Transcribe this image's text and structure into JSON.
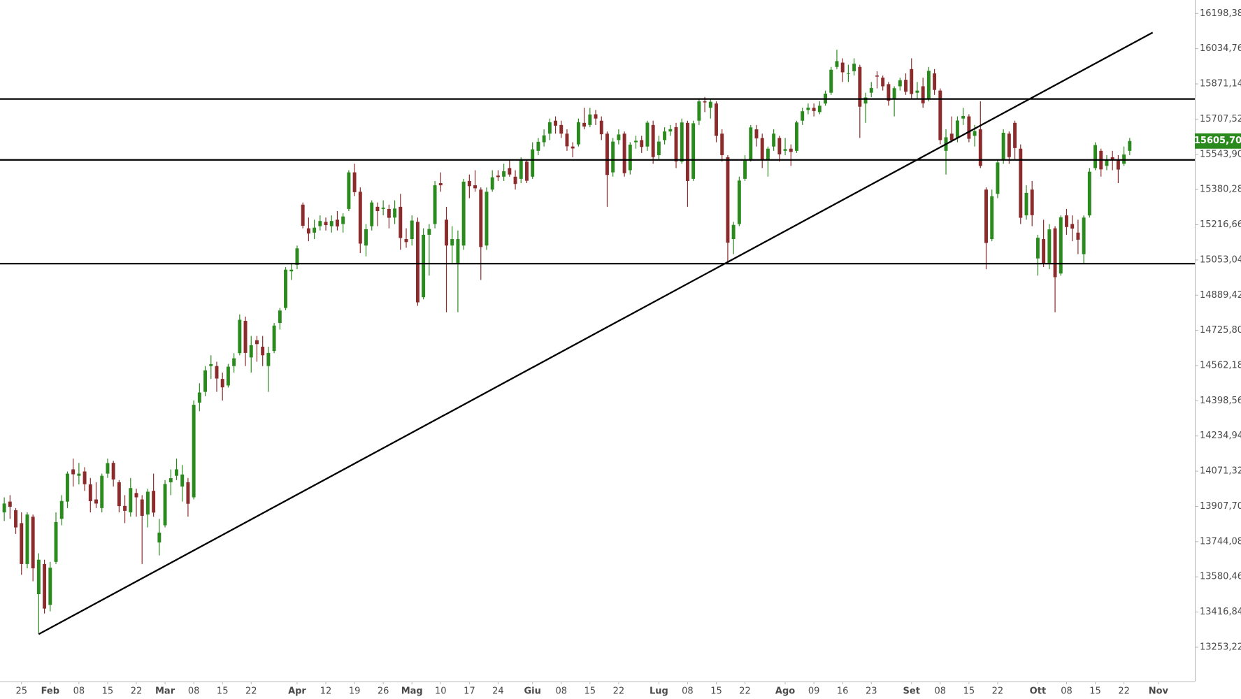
{
  "chart_data": {
    "type": "candlestick",
    "up_color": "#2b8a1e",
    "down_color": "#8b2b2b",
    "line_color": "#000000",
    "grid": false,
    "ylim": [
      13094,
      16261
    ],
    "yticks": [
      {
        "value": 16198.38,
        "label": "16198,38"
      },
      {
        "value": 16034.76,
        "label": "16034,76"
      },
      {
        "value": 15871.14,
        "label": "15871,14"
      },
      {
        "value": 15707.52,
        "label": "15707,52"
      },
      {
        "value": 15543.9,
        "label": "15543,90"
      },
      {
        "value": 15380.28,
        "label": "15380,28"
      },
      {
        "value": 15216.66,
        "label": "15216,66"
      },
      {
        "value": 15053.04,
        "label": "15053,04"
      },
      {
        "value": 14889.42,
        "label": "14889,42"
      },
      {
        "value": 14725.8,
        "label": "14725,80"
      },
      {
        "value": 14562.18,
        "label": "14562,18"
      },
      {
        "value": 14398.56,
        "label": "14398,56"
      },
      {
        "value": 14234.94,
        "label": "14234,94"
      },
      {
        "value": 14071.32,
        "label": "14071,32"
      },
      {
        "value": 13907.7,
        "label": "13907,70"
      },
      {
        "value": 13744.08,
        "label": "13744,08"
      },
      {
        "value": 13580.46,
        "label": "13580,46"
      },
      {
        "value": 13416.84,
        "label": "13416,84"
      },
      {
        "value": 13253.22,
        "label": "13253,22"
      }
    ],
    "last_price": {
      "value": 15605.7,
      "label": "15605,70"
    },
    "hlines": [
      15801,
      15518,
      15036
    ],
    "trendline": {
      "x": [
        6,
        200
      ],
      "y": [
        13314,
        16110
      ]
    },
    "categories": [
      null,
      null,
      null,
      "25",
      null,
      null,
      null,
      null,
      "Feb",
      null,
      null,
      null,
      null,
      "08",
      null,
      null,
      null,
      null,
      "15",
      null,
      null,
      null,
      null,
      "22",
      null,
      null,
      null,
      null,
      "Mar",
      null,
      null,
      null,
      null,
      "08",
      null,
      null,
      null,
      null,
      "15",
      null,
      null,
      null,
      null,
      "22",
      null,
      null,
      null,
      null,
      null,
      null,
      null,
      "Apr",
      null,
      null,
      null,
      null,
      "12",
      null,
      null,
      null,
      null,
      "19",
      null,
      null,
      null,
      null,
      "26",
      null,
      null,
      null,
      null,
      "Mag",
      null,
      null,
      null,
      null,
      "10",
      null,
      null,
      null,
      null,
      "17",
      null,
      null,
      null,
      null,
      "24",
      null,
      null,
      null,
      null,
      null,
      "Giu",
      null,
      null,
      null,
      null,
      "08",
      null,
      null,
      null,
      null,
      "15",
      null,
      null,
      null,
      null,
      "22",
      null,
      null,
      null,
      null,
      null,
      null,
      "Lug",
      null,
      null,
      null,
      null,
      "08",
      null,
      null,
      null,
      null,
      "15",
      null,
      null,
      null,
      null,
      "22",
      null,
      null,
      null,
      null,
      null,
      null,
      "Ago",
      null,
      null,
      null,
      null,
      "09",
      null,
      null,
      null,
      null,
      "16",
      null,
      null,
      null,
      null,
      "23",
      null,
      null,
      null,
      null,
      null,
      null,
      "Set",
      null,
      null,
      null,
      null,
      "08",
      null,
      null,
      null,
      null,
      "15",
      null,
      null,
      null,
      null,
      "22",
      null,
      null,
      null,
      null,
      null,
      null,
      "Ott",
      null,
      null,
      null,
      null,
      "08",
      null,
      null,
      null,
      null,
      "15",
      null,
      null,
      null,
      null,
      "22",
      null,
      null,
      null,
      null,
      null,
      "Nov"
    ],
    "open": [
      13880,
      13930,
      13890,
      13830,
      13640,
      13860,
      13500,
      13640,
      13450,
      13650,
      13850,
      13930,
      14080,
      14050,
      14070,
      14010,
      13940,
      13900,
      14060,
      14110,
      14020,
      13910,
      13880,
      13970,
      13940,
      13870,
      13980,
      13740,
      13820,
      14020,
      14050,
      14000,
      14020,
      13950,
      14390,
      14440,
      14560,
      14560,
      14500,
      14470,
      14560,
      14620,
      14770,
      14600,
      14680,
      14650,
      14560,
      14630,
      14760,
      14830,
      15000,
      15030,
      15310,
      15200,
      15180,
      15210,
      15230,
      15210,
      15240,
      15220,
      15290,
      15460,
      15370,
      15120,
      15210,
      15300,
      15290,
      15290,
      15250,
      15300,
      15150,
      15150,
      15230,
      14880,
      15170,
      15220,
      15410,
      15240,
      15120,
      15040,
      15120,
      15420,
      15400,
      15380,
      15120,
      15380,
      15445,
      15440,
      15480,
      15440,
      15430,
      15510,
      15440,
      15560,
      15600,
      15640,
      15700,
      15680,
      15640,
      15580,
      15590,
      15690,
      15680,
      15730,
      15700,
      15640,
      15460,
      15610,
      15640,
      15470,
      15600,
      15610,
      15580,
      15680,
      15540,
      15610,
      15650,
      15670,
      15510,
      15690,
      15430,
      15700,
      15790,
      15760,
      15780,
      15640,
      15530,
      15150,
      15220,
      15430,
      15520,
      15660,
      15620,
      15520,
      15580,
      15620,
      15560,
      15570,
      15560,
      15700,
      15750,
      15760,
      15740,
      15780,
      15830,
      15950,
      15970,
      15920,
      15930,
      15950,
      15780,
      15830,
      15910,
      15900,
      15870,
      15800,
      15860,
      15890,
      15940,
      15830,
      15860,
      15800,
      15920,
      15840,
      15560,
      15640,
      15620,
      15710,
      15720,
      15630,
      15660,
      15380,
      15150,
      15360,
      15520,
      15640,
      15690,
      15570,
      15260,
      15380,
      15060,
      15150,
      15040,
      15200,
      14990,
      15260,
      15220,
      15180,
      15080,
      15260,
      15480,
      15560,
      15490,
      15530,
      15520,
      15500,
      15560,
      null,
      null,
      null,
      null,
      null
    ],
    "high": [
      13950,
      13960,
      13900,
      13880,
      13880,
      13870,
      13690,
      13660,
      13650,
      13880,
      13960,
      14070,
      14130,
      14110,
      14090,
      14040,
      14020,
      14060,
      14130,
      14120,
      14030,
      13960,
      14040,
      13990,
      13960,
      13990,
      14060,
      13850,
      14030,
      14080,
      14130,
      14100,
      14040,
      14400,
      14480,
      14560,
      14610,
      14580,
      14530,
      14570,
      14620,
      14800,
      14790,
      14700,
      14700,
      14700,
      14650,
      14760,
      14830,
      15020,
      15040,
      15120,
      15320,
      15250,
      15240,
      15260,
      15250,
      15260,
      15280,
      15270,
      15470,
      15500,
      15390,
      15220,
      15330,
      15320,
      15330,
      15310,
      15330,
      15360,
      15200,
      15260,
      15250,
      15200,
      15220,
      15420,
      15460,
      15300,
      15210,
      15190,
      15430,
      15450,
      15470,
      15390,
      15390,
      15470,
      15470,
      15500,
      15520,
      15470,
      15530,
      15520,
      15600,
      15620,
      15660,
      15710,
      15720,
      15700,
      15660,
      15600,
      15710,
      15760,
      15760,
      15750,
      15720,
      15650,
      15620,
      15660,
      15650,
      15600,
      15630,
      15630,
      15700,
      15700,
      15630,
      15670,
      15680,
      15690,
      15710,
      15700,
      15700,
      15800,
      15810,
      15800,
      15790,
      15660,
      15540,
      15230,
      15440,
      15540,
      15680,
      15680,
      15640,
      15580,
      15660,
      15630,
      15620,
      15590,
      15700,
      15760,
      15780,
      15780,
      15790,
      15840,
      15950,
      16030,
      15990,
      15960,
      15990,
      15960,
      15830,
      15880,
      15930,
      15910,
      15880,
      15860,
      15900,
      15920,
      15990,
      15880,
      15900,
      15950,
      15940,
      15850,
      15660,
      15720,
      15720,
      15760,
      15730,
      15680,
      15790,
      15390,
      15380,
      15520,
      15660,
      15650,
      15700,
      15590,
      15400,
      15420,
      15170,
      15240,
      15220,
      15210,
      15260,
      15290,
      15260,
      15240,
      15260,
      15480,
      15600,
      15570,
      15540,
      15560,
      15540,
      15580,
      15620,
      null,
      null,
      null,
      null,
      null
    ],
    "low": [
      13840,
      13850,
      13780,
      13590,
      13620,
      13560,
      13314,
      13410,
      13420,
      13640,
      13820,
      13900,
      14000,
      14010,
      13980,
      13880,
      13900,
      13880,
      14040,
      14000,
      13880,
      13830,
      13860,
      13860,
      13640,
      13810,
      13860,
      13680,
      13810,
      13960,
      14030,
      13930,
      13860,
      13940,
      14350,
      14420,
      14500,
      14440,
      14400,
      14460,
      14530,
      14610,
      14560,
      14530,
      14580,
      14560,
      14440,
      14620,
      14730,
      14820,
      14960,
      15010,
      15200,
      15140,
      15150,
      15190,
      15190,
      15180,
      15190,
      15180,
      15280,
      15350,
      15085,
      15070,
      15190,
      15210,
      15260,
      15200,
      15220,
      15100,
      15110,
      15120,
      14840,
      14870,
      14980,
      15200,
      15370,
      14810,
      15040,
      14810,
      15100,
      15340,
      15370,
      14960,
      15100,
      15370,
      15420,
      15420,
      15440,
      15380,
      15410,
      15410,
      15430,
      15540,
      15580,
      15610,
      15640,
      15620,
      15560,
      15530,
      15580,
      15660,
      15670,
      15680,
      15610,
      15300,
      15440,
      15590,
      15440,
      15450,
      15570,
      15550,
      15560,
      15500,
      15520,
      15590,
      15630,
      15480,
      15500,
      15300,
      15420,
      15680,
      15740,
      15710,
      15600,
      15510,
      15036,
      15080,
      15210,
      15420,
      15510,
      15580,
      15480,
      15440,
      15560,
      15510,
      15540,
      15490,
      15550,
      15680,
      15730,
      15720,
      15730,
      15770,
      15820,
      15940,
      15880,
      15880,
      15910,
      15620,
      15690,
      15810,
      15850,
      15840,
      15770,
      15720,
      15840,
      15820,
      15800,
      15800,
      15760,
      15790,
      15820,
      15590,
      15450,
      15600,
      15600,
      15680,
      15600,
      15580,
      15480,
      15010,
      15140,
      15340,
      15500,
      15500,
      15520,
      15220,
      15240,
      15210,
      14980,
      15020,
      15010,
      14810,
      14980,
      15170,
      15140,
      15080,
      15040,
      15250,
      15470,
      15440,
      15470,
      15470,
      15410,
      15490,
      15540,
      null,
      null,
      null,
      null,
      null
    ],
    "close": [
      13921,
      13906,
      13810,
      13640,
      13870,
      13620,
      13660,
      13433,
      13623,
      13835,
      13933,
      14060,
      14057,
      14060,
      14011,
      13932,
      13921,
      14050,
      14109,
      14033,
      13909,
      13887,
      13993,
      13950,
      13864,
      13976,
      13879,
      13786,
      14012,
      14039,
      14080,
      14056,
      13920,
      14380,
      14437,
      14540,
      14569,
      14502,
      14461,
      14557,
      14596,
      14775,
      14621,
      14657,
      14662,
      14610,
      14621,
      14748,
      14818,
      15008,
      15008,
      15107,
      15212,
      15176,
      15203,
      15234,
      15215,
      15234,
      15209,
      15255,
      15460,
      15368,
      15129,
      15196,
      15320,
      15280,
      15296,
      15249,
      15292,
      15155,
      15136,
      15236,
      14856,
      15170,
      15197,
      15400,
      15400,
      15120,
      15150,
      15150,
      15417,
      15396,
      15386,
      15113,
      15370,
      15437,
      15438,
      15465,
      15450,
      15406,
      15520,
      15421,
      15567,
      15602,
      15632,
      15693,
      15677,
      15640,
      15581,
      15571,
      15693,
      15673,
      15729,
      15710,
      15637,
      15448,
      15603,
      15636,
      15456,
      15589,
      15607,
      15578,
      15691,
      15531,
      15603,
      15650,
      15661,
      15511,
      15692,
      15420,
      15688,
      15790,
      15785,
      15788,
      15630,
      15540,
      15133,
      15216,
      15422,
      15514,
      15669,
      15618,
      15519,
      15570,
      15640,
      15544,
      15568,
      15555,
      15692,
      15744,
      15761,
      15745,
      15770,
      15826,
      15937,
      15977,
      15925,
      15921,
      15965,
      15765,
      15808,
      15852,
      15905,
      15860,
      15793,
      15851,
      15888,
      15835,
      15824,
      15840,
      15781,
      15932,
      15843,
      15610,
      15623,
      15609,
      15701,
      15722,
      15616,
      15652,
      15490,
      15132,
      15349,
      15506,
      15644,
      15531,
      15573,
      15249,
      15365,
      15261,
      15156,
      15036,
      15195,
      14973,
      15251,
      15206,
      15199,
      15147,
      15250,
      15463,
      15587,
      15474,
      15516,
      15522,
      15473,
      15543,
      15605.7,
      null,
      null,
      null,
      null,
      null
    ]
  }
}
